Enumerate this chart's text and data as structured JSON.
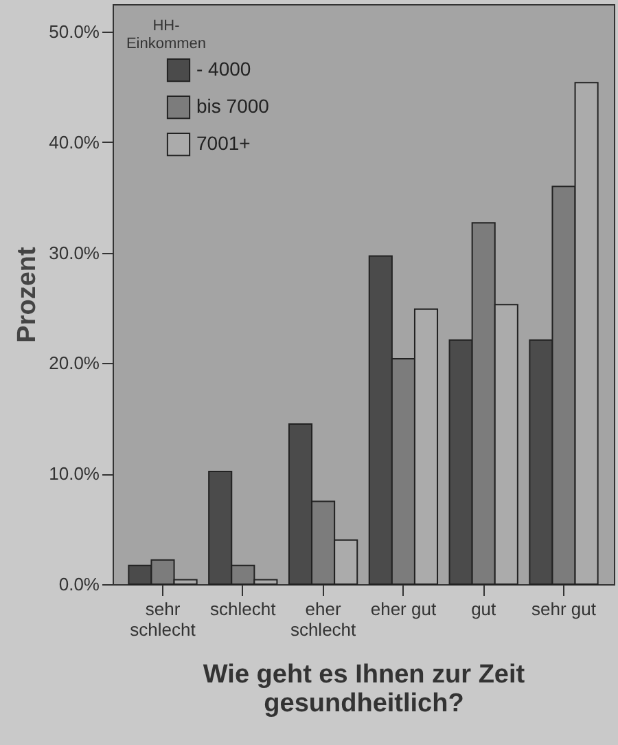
{
  "chart_data": {
    "type": "bar",
    "xlabel": "Wie geht es Ihnen zur Zeit gesundheitlich?",
    "ylabel": "Prozent",
    "legend_title": "HH-Einkommen",
    "legend": "top left",
    "grid": false,
    "categories": [
      "sehr schlecht",
      "schlecht",
      "eher schlecht",
      "eher gut",
      "gut",
      "sehr gut"
    ],
    "ylim": [
      0,
      52.5
    ],
    "yticks": [
      {
        "value": 0,
        "label": "0.0%"
      },
      {
        "value": 10,
        "label": "10.0%"
      },
      {
        "value": 20,
        "label": "20.0%"
      },
      {
        "value": 30,
        "label": "30.0%"
      },
      {
        "value": 40,
        "label": "40.0%"
      },
      {
        "value": 50,
        "label": "50.0%"
      }
    ],
    "series": [
      {
        "name": "- 4000",
        "color": "#4b4b4b",
        "values": [
          1.7,
          10.2,
          14.5,
          29.7,
          22.1,
          22.1
        ]
      },
      {
        "name": "bis 7000",
        "color": "#7c7c7c",
        "values": [
          2.2,
          1.7,
          7.5,
          20.4,
          32.7,
          36.0
        ]
      },
      {
        "name": "7001+",
        "color": "#ababab",
        "values": [
          0.4,
          0.4,
          4.0,
          24.9,
          25.3,
          45.4
        ]
      }
    ]
  }
}
